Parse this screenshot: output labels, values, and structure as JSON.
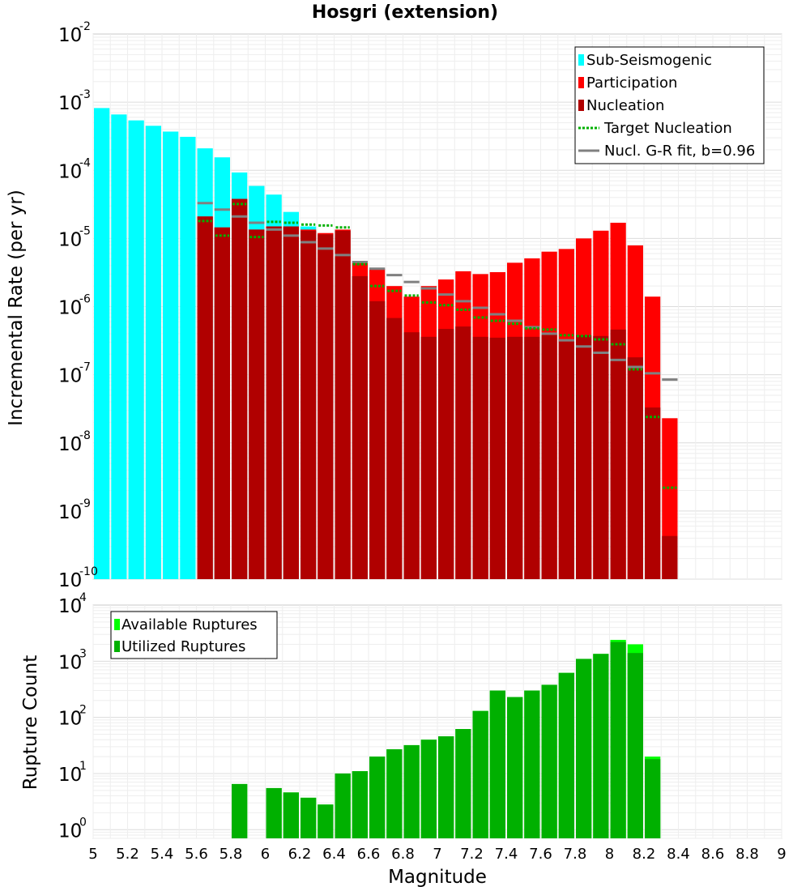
{
  "title": "Hosgri (extension)",
  "chart_data": [
    {
      "type": "bar",
      "panel": "top",
      "ylabel": "Incremental Rate (per yr)",
      "yscale": "log",
      "ylim": [
        1e-10,
        0.01
      ],
      "xlim": [
        5,
        9
      ],
      "grid": true,
      "legend_position": "top-right",
      "legend": [
        "Sub-Seismogenic",
        "Participation",
        "Nucleation",
        "Target Nucleation",
        "Nucl. G-R fit, b=0.96"
      ],
      "colors": {
        "sub_seismogenic": "#00ffff",
        "participation": "#ff0000",
        "nucleation": "#b00000",
        "target_nucleation": "#00b000",
        "gr_fit": "#808080"
      },
      "bin_width": 0.1,
      "sub_seismogenic": {
        "x": [
          5.05,
          5.15,
          5.25,
          5.35,
          5.45,
          5.55,
          5.65,
          5.75,
          5.85,
          5.95,
          6.05,
          6.15,
          6.25
        ],
        "values": [
          0.00082,
          0.00066,
          0.00054,
          0.00045,
          0.00037,
          0.00031,
          0.00021,
          0.000155,
          9.3e-05,
          5.9e-05,
          4.4e-05,
          2.45e-05,
          1.5e-05
        ]
      },
      "x": [
        5.65,
        5.75,
        5.85,
        5.95,
        6.05,
        6.15,
        6.25,
        6.35,
        6.45,
        6.55,
        6.65,
        6.75,
        6.85,
        6.95,
        7.05,
        7.15,
        7.25,
        7.35,
        7.45,
        7.55,
        7.65,
        7.75,
        7.85,
        7.95,
        8.05,
        8.15,
        8.25,
        8.35
      ],
      "series": [
        {
          "name": "Participation",
          "values": [
            2.1e-05,
            1.45e-05,
            3.8e-05,
            1.35e-05,
            1.5e-05,
            1.5e-05,
            1.35e-05,
            1.2e-05,
            1.35e-05,
            4.4e-06,
            3.6e-06,
            2e-06,
            1.4e-06,
            2e-06,
            2.5e-06,
            3.3e-06,
            3e-06,
            3.2e-06,
            4.4e-06,
            5.1e-06,
            6.4e-06,
            7e-06,
            1e-05,
            1.3e-05,
            1.7e-05,
            7.9e-06,
            1.4e-06,
            2.3e-08
          ]
        },
        {
          "name": "Nucleation",
          "values": [
            2.1e-05,
            1.45e-05,
            3.8e-05,
            1.35e-05,
            1.5e-05,
            1.5e-05,
            1.3e-05,
            1.15e-05,
            1.3e-05,
            2.8e-06,
            1.2e-06,
            6.8e-07,
            4.2e-07,
            3.6e-07,
            4.7e-07,
            5.1e-07,
            3.6e-07,
            3.5e-07,
            3.6e-07,
            3.6e-07,
            3.9e-07,
            3.3e-07,
            3.8e-07,
            3.7e-07,
            4.6e-07,
            1.8e-07,
            3.3e-08,
            4.3e-10
          ]
        },
        {
          "name": "Target Nucleation",
          "values": [
            1.8e-05,
            1.1e-05,
            3.2e-05,
            1.05e-05,
            1.75e-05,
            1.7e-05,
            1.6e-05,
            1.55e-05,
            1.45e-05,
            4.2e-06,
            2e-06,
            1.7e-06,
            1.45e-06,
            1.15e-06,
            1.05e-06,
            9e-07,
            6.9e-07,
            6.2e-07,
            5.6e-07,
            4.8e-07,
            4.6e-07,
            3.8e-07,
            3.7e-07,
            3.3e-07,
            2.8e-07,
            1.2e-07,
            2.4e-08,
            2.2e-09
          ]
        },
        {
          "name": "Nucl. G-R fit, b=0.96",
          "values": [
            3.3e-05,
            2.65e-05,
            2.1e-05,
            1.7e-05,
            1.35e-05,
            1.1e-05,
            8.8e-06,
            7.1e-06,
            5.7e-06,
            4.5e-06,
            3.6e-06,
            2.9e-06,
            2.3e-06,
            1.85e-06,
            1.5e-06,
            1.2e-06,
            9.6e-07,
            7.7e-07,
            6.2e-07,
            5e-07,
            4e-07,
            3.2e-07,
            2.6e-07,
            2.1e-07,
            1.65e-07,
            1.3e-07,
            1.05e-07,
            8.5e-08
          ]
        }
      ],
      "xticks": [
        "5",
        "5.2",
        "5.4",
        "5.6",
        "5.8",
        "6",
        "6.2",
        "6.4",
        "6.6",
        "6.8",
        "7",
        "7.2",
        "7.4",
        "7.6",
        "7.8",
        "8",
        "8.2",
        "8.4",
        "8.6",
        "8.8",
        "9"
      ],
      "yticks": [
        {
          "base": "10",
          "exp": "-10",
          "value": 1e-10
        },
        {
          "base": "10",
          "exp": "-9",
          "value": 1e-09
        },
        {
          "base": "10",
          "exp": "-8",
          "value": 1e-08
        },
        {
          "base": "10",
          "exp": "-7",
          "value": 1e-07
        },
        {
          "base": "10",
          "exp": "-6",
          "value": 1e-06
        },
        {
          "base": "10",
          "exp": "-5",
          "value": 1e-05
        },
        {
          "base": "10",
          "exp": "-4",
          "value": 0.0001
        },
        {
          "base": "10",
          "exp": "-3",
          "value": 0.001
        },
        {
          "base": "10",
          "exp": "-2",
          "value": 0.01
        }
      ]
    },
    {
      "type": "bar",
      "panel": "bottom",
      "xlabel": "Magnitude",
      "ylabel": "Rupture Count",
      "yscale": "log",
      "ylim": [
        0.7,
        10000
      ],
      "xlim": [
        5,
        9
      ],
      "grid": true,
      "legend_position": "top-left",
      "legend": [
        "Available Ruptures",
        "Utilized Ruptures"
      ],
      "colors": {
        "available": "#00ff00",
        "utilized": "#00b000"
      },
      "x": [
        5.85,
        6.05,
        6.15,
        6.25,
        6.35,
        6.45,
        6.55,
        6.65,
        6.75,
        6.85,
        6.95,
        7.05,
        7.15,
        7.25,
        7.35,
        7.45,
        7.55,
        7.65,
        7.75,
        7.85,
        7.95,
        8.05,
        8.15,
        8.25
      ],
      "series": [
        {
          "name": "Available Ruptures",
          "values": [
            6.5,
            5.5,
            4.6,
            3.7,
            2.8,
            10,
            11,
            20,
            27,
            32,
            40,
            46,
            62,
            130,
            300,
            230,
            300,
            380,
            620,
            1100,
            1350,
            2400,
            2000,
            20
          ]
        },
        {
          "name": "Utilized Ruptures",
          "values": [
            6.5,
            5.5,
            4.6,
            3.7,
            2.8,
            10,
            11,
            20,
            27,
            32,
            40,
            46,
            62,
            130,
            300,
            230,
            300,
            380,
            620,
            1100,
            1350,
            2200,
            1400,
            18
          ]
        }
      ],
      "yticks": [
        {
          "base": "10",
          "exp": "0",
          "value": 1
        },
        {
          "base": "10",
          "exp": "1",
          "value": 10
        },
        {
          "base": "10",
          "exp": "2",
          "value": 100
        },
        {
          "base": "10",
          "exp": "3",
          "value": 1000
        },
        {
          "base": "10",
          "exp": "4",
          "value": 10000
        }
      ]
    }
  ]
}
